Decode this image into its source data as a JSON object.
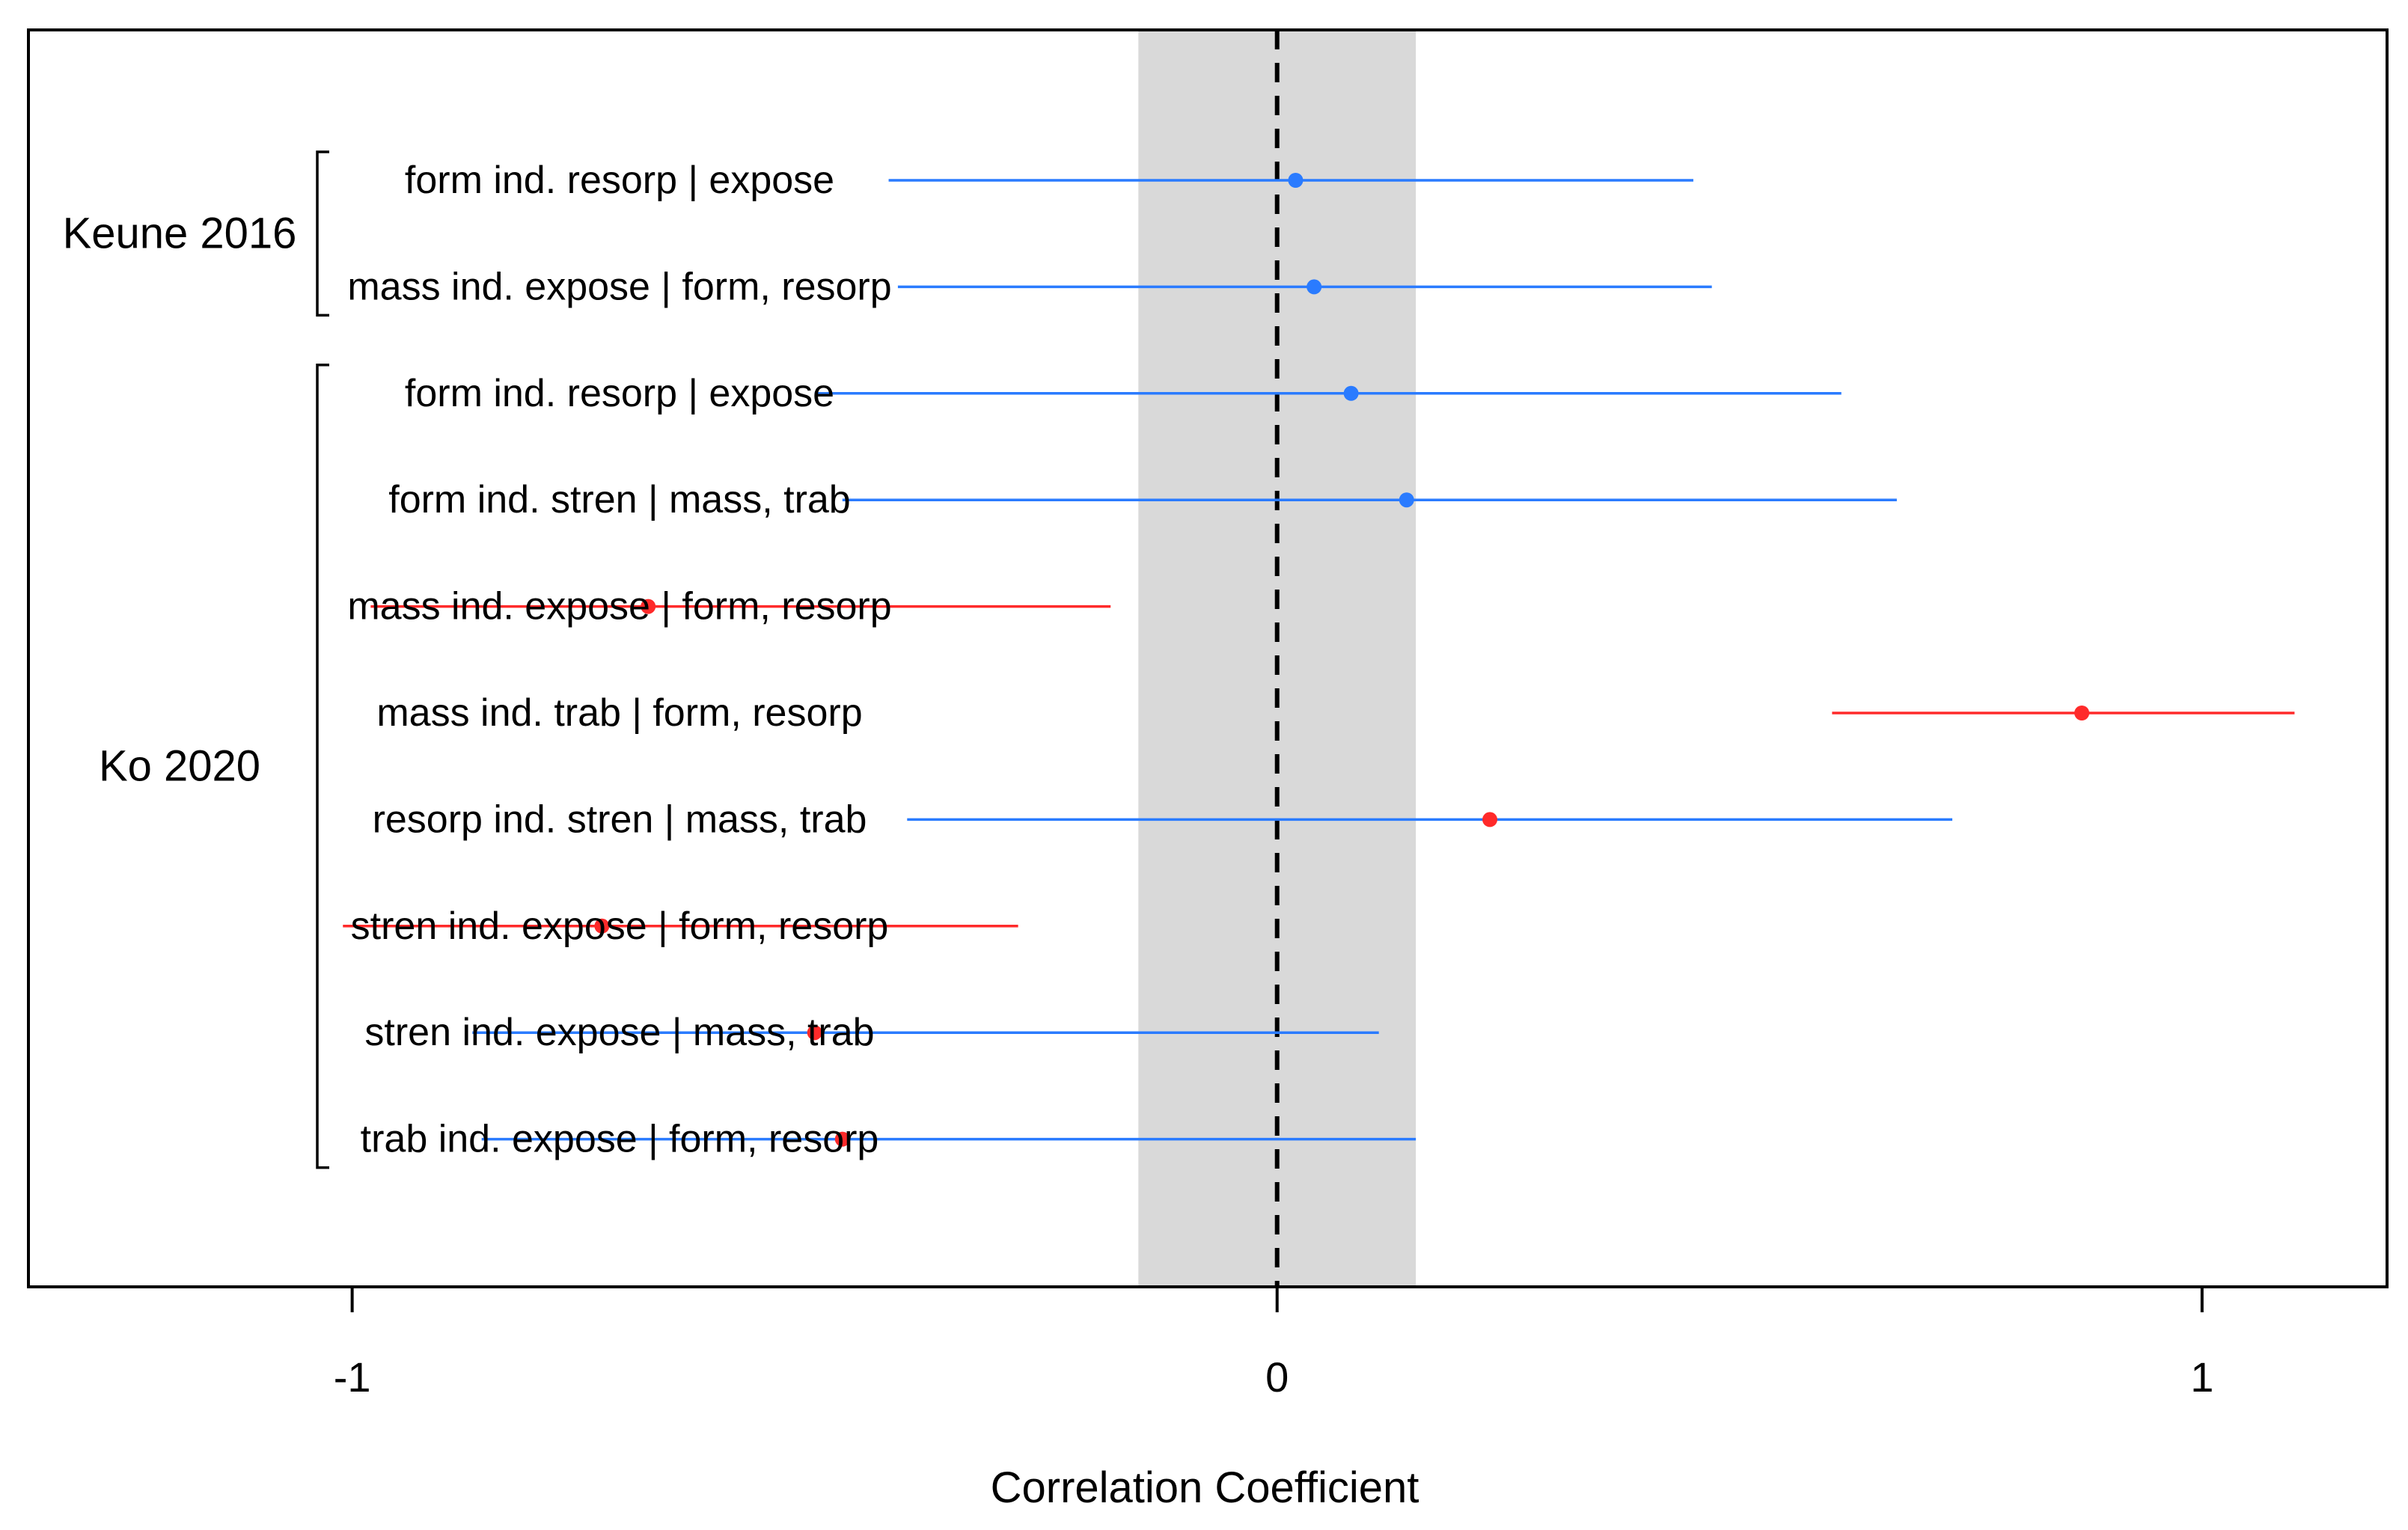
{
  "chart_data": {
    "type": "forest",
    "xlabel": "Correlation Coefficient",
    "xlim": [
      -1.35,
      1.2
    ],
    "xticks": [
      -1,
      0,
      1
    ],
    "xtick_labels": [
      "-1",
      "0",
      "1"
    ],
    "reference_line": 0,
    "null_band": [
      -0.15,
      0.15
    ],
    "colors": {
      "significant": "#ff2a2a",
      "not_significant": "#2a7bff",
      "band": "#d9d9d9"
    },
    "groups": [
      {
        "label": "Keune 2016",
        "rows": [
          0,
          1
        ]
      },
      {
        "label": "Ko 2020",
        "rows": [
          2,
          9
        ]
      }
    ],
    "rows": [
      {
        "label": "form ind. resorp | expose",
        "estimate": 0.02,
        "lower": -0.42,
        "upper": 0.45,
        "line_color": "not_significant",
        "point_color": "not_significant"
      },
      {
        "label": "mass ind. expose | form, resorp",
        "estimate": 0.04,
        "lower": -0.41,
        "upper": 0.47,
        "line_color": "not_significant",
        "point_color": "not_significant"
      },
      {
        "label": "form ind. resorp | expose",
        "estimate": 0.08,
        "lower": -0.5,
        "upper": 0.61,
        "line_color": "not_significant",
        "point_color": "not_significant"
      },
      {
        "label": "form ind. stren | mass, trab",
        "estimate": 0.14,
        "lower": -0.47,
        "upper": 0.67,
        "line_color": "not_significant",
        "point_color": "not_significant"
      },
      {
        "label": "mass ind. expose | form, resorp",
        "estimate": -0.68,
        "lower": -0.98,
        "upper": -0.18,
        "line_color": "significant",
        "point_color": "significant"
      },
      {
        "label": "mass ind. trab | form, resorp",
        "estimate": 0.87,
        "lower": 0.6,
        "upper": 1.1,
        "line_color": "significant",
        "point_color": "significant"
      },
      {
        "label": "resorp ind. stren | mass, trab",
        "estimate": 0.23,
        "lower": -0.4,
        "upper": 0.73,
        "line_color": "not_significant",
        "point_color": "significant"
      },
      {
        "label": "stren ind. expose | form, resorp",
        "estimate": -0.73,
        "lower": -1.01,
        "upper": -0.28,
        "line_color": "significant",
        "point_color": "significant"
      },
      {
        "label": "stren ind. expose | mass, trab",
        "estimate": -0.5,
        "lower": -0.87,
        "upper": 0.11,
        "line_color": "not_significant",
        "point_color": "significant"
      },
      {
        "label": "trab ind. expose | form, resorp",
        "estimate": -0.47,
        "lower": -0.86,
        "upper": 0.15,
        "line_color": "not_significant",
        "point_color": "significant"
      }
    ]
  }
}
